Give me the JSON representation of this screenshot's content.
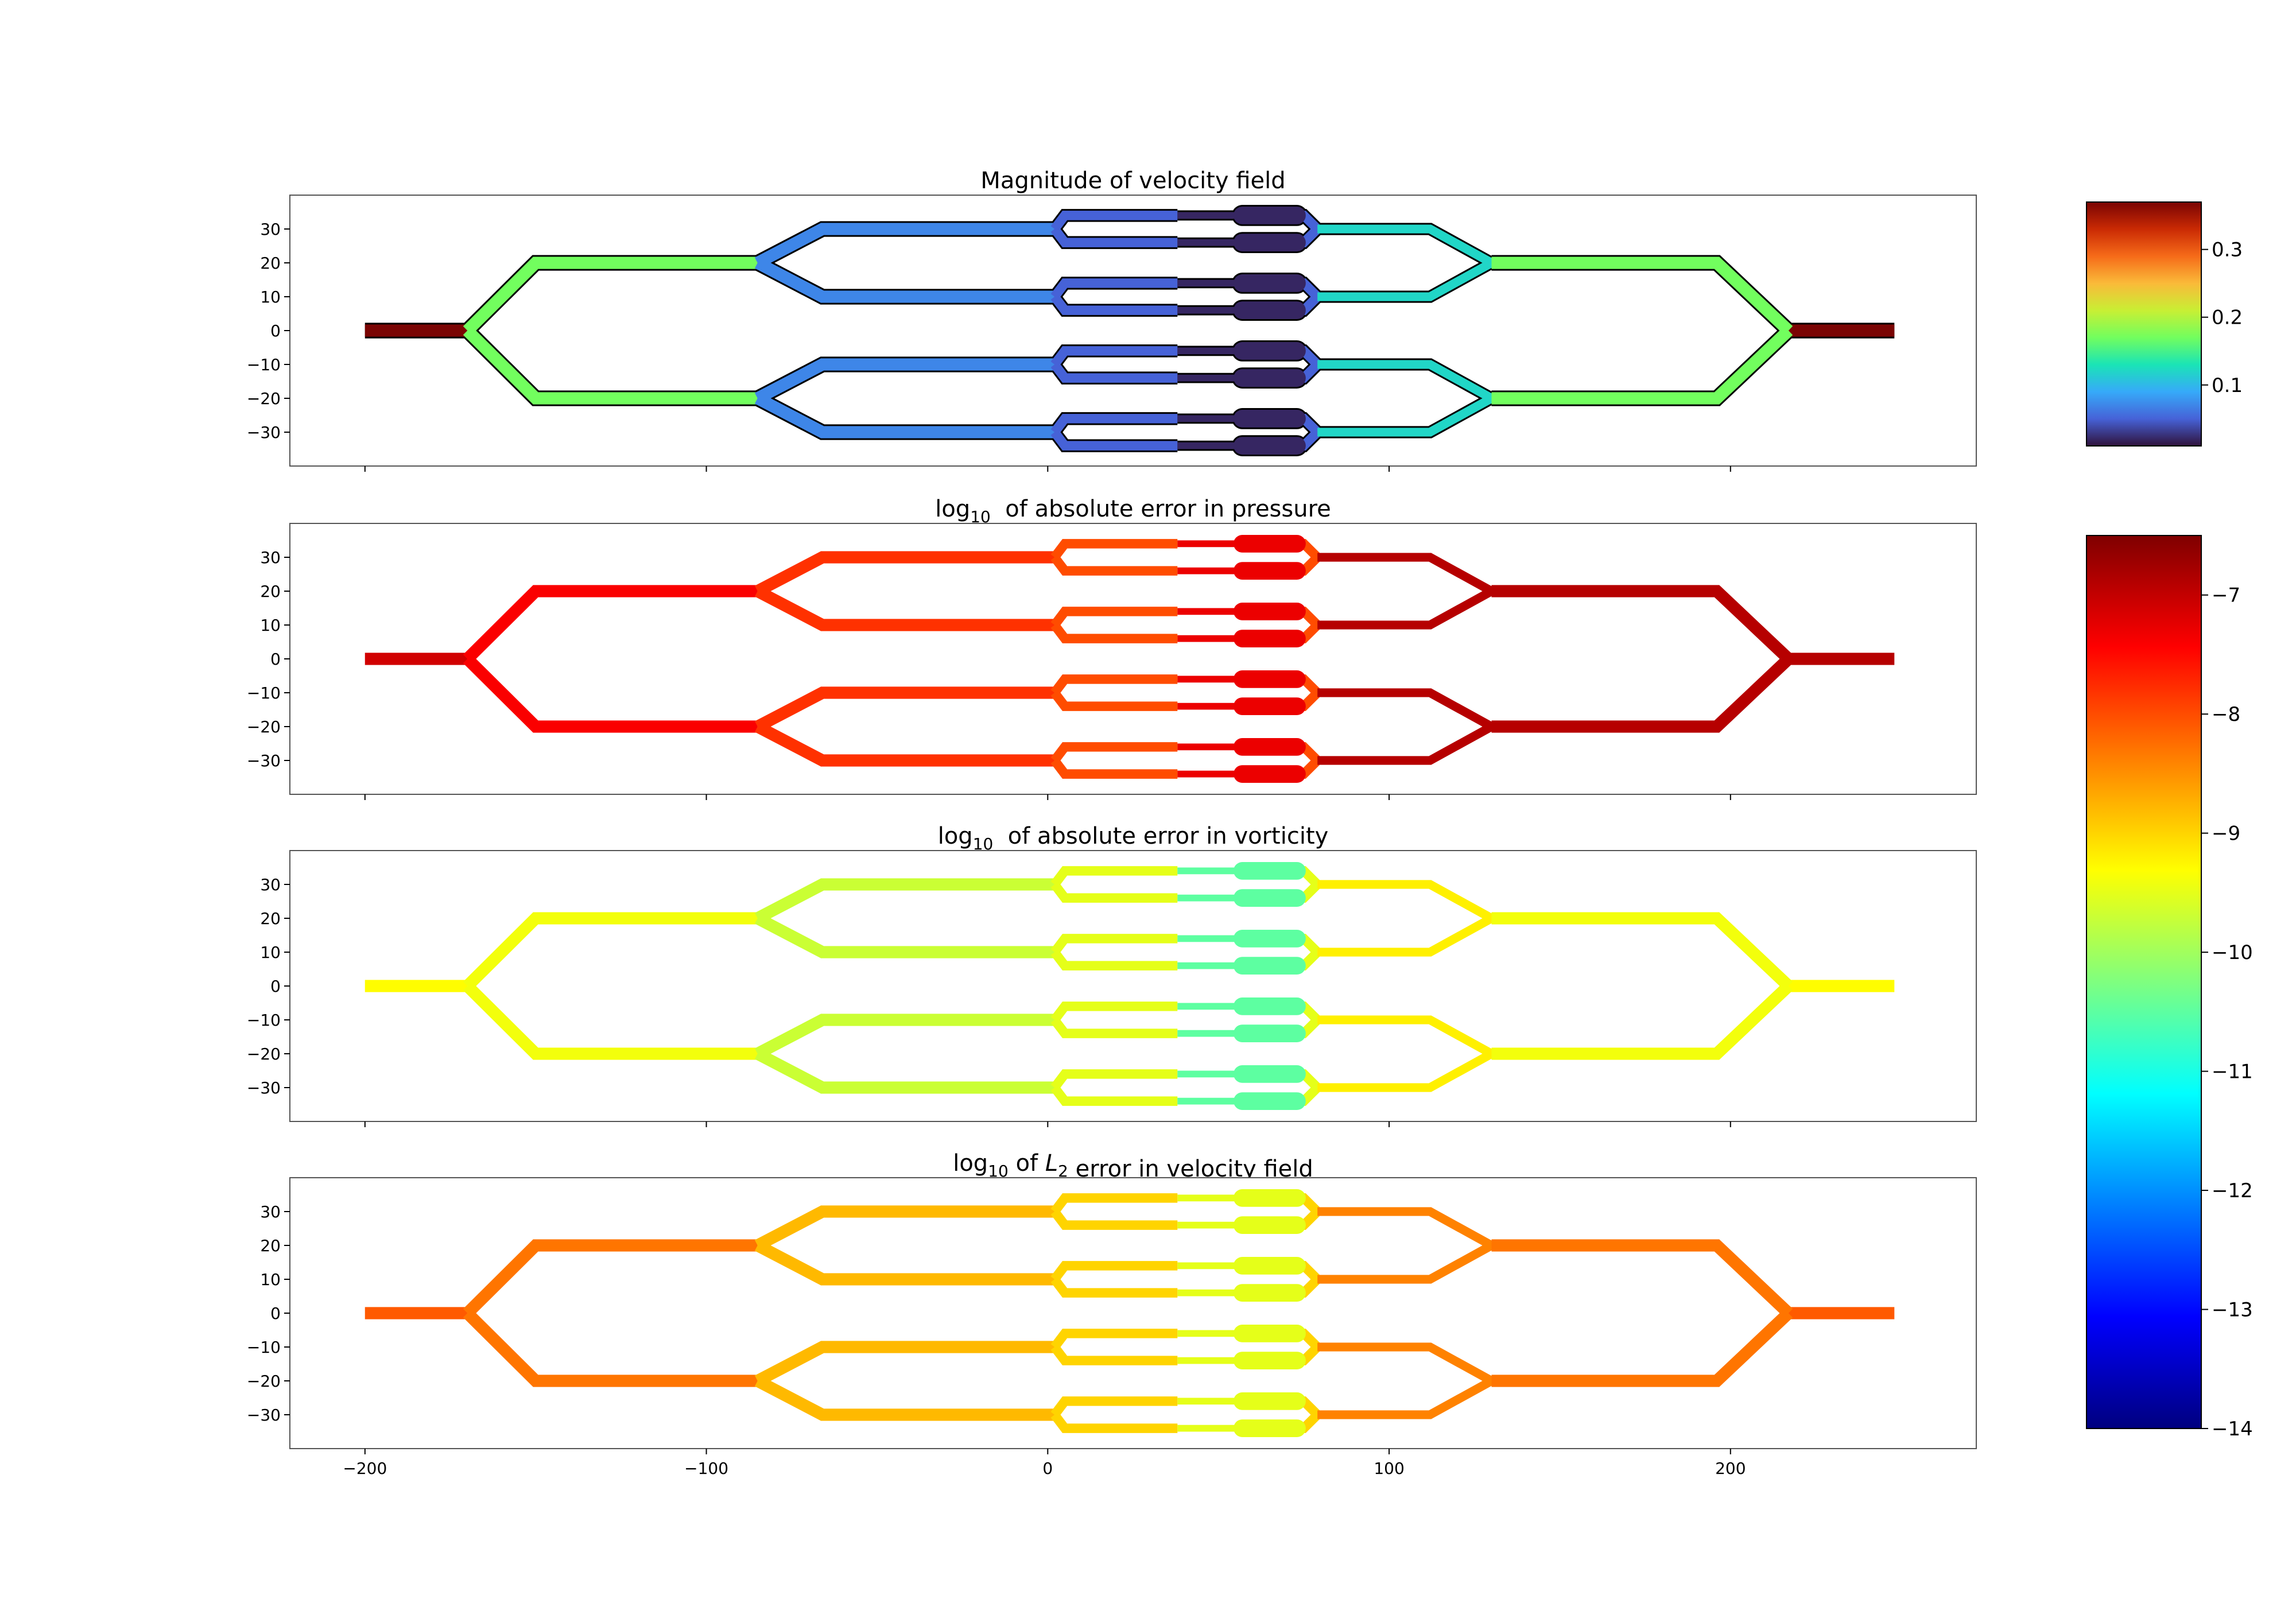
{
  "figure": {
    "colors": {
      "axes_frame": "#555555",
      "channel_outline": "#000000",
      "jet_stops": [
        "#00007f",
        "#0000ff",
        "#007fff",
        "#00ffff",
        "#7fff7f",
        "#ffff00",
        "#ff7f00",
        "#ff0000",
        "#7f0000"
      ],
      "turbo_stops": [
        "#30123b",
        "#4662d7",
        "#36aaf9",
        "#1ae4b6",
        "#72fe5e",
        "#c8ef34",
        "#faba39",
        "#f66b19",
        "#ca2a04",
        "#7a0403"
      ]
    },
    "colorbars": [
      {
        "scale": "turbo",
        "range": [
          0.01,
          0.37
        ],
        "ticks": [
          {
            "value": 0.1,
            "label": "0.1"
          },
          {
            "value": 0.2,
            "label": "0.2"
          },
          {
            "value": 0.3,
            "label": "0.3"
          }
        ]
      },
      {
        "scale": "jet",
        "range": [
          -14,
          -6.5
        ],
        "ticks": [
          {
            "value": -7,
            "label": "−7"
          },
          {
            "value": -8,
            "label": "−8"
          },
          {
            "value": -9,
            "label": "−9"
          },
          {
            "value": -10,
            "label": "−10"
          },
          {
            "value": -11,
            "label": "−11"
          },
          {
            "value": -12,
            "label": "−12"
          },
          {
            "value": -13,
            "label": "−13"
          },
          {
            "value": -14,
            "label": "−14"
          }
        ]
      }
    ]
  },
  "chart_data": [
    {
      "type": "heatmap",
      "title": {
        "main": "Magnitude of velocity field",
        "prefix": "",
        "sub": "",
        "italic": "",
        "italic_sub": "",
        "suffix": ""
      },
      "title_plain": "Magnitude of velocity field",
      "xlim": [
        -222,
        272
      ],
      "ylim": [
        -40,
        40
      ],
      "xticks": [],
      "yticks": [
        -30,
        -20,
        -10,
        0,
        10,
        20,
        30
      ],
      "outlined": true,
      "colorbar": 0,
      "values": {
        "inlet": 0.37,
        "stage1": 0.17,
        "stage2": 0.07,
        "stage3": 0.05,
        "stage4": 0.02,
        "stage5": 0.12,
        "stage6": 0.17,
        "outlet": 0.37
      }
    },
    {
      "type": "heatmap",
      "title": {
        "main": "",
        "prefix": "log",
        "sub": "10",
        "italic": "",
        "italic_sub": "",
        "suffix": " of absolute error in pressure"
      },
      "title_plain": "log10 of absolute error in pressure",
      "xlim": [
        -222,
        272
      ],
      "ylim": [
        -40,
        40
      ],
      "xticks": [],
      "yticks": [
        -30,
        -20,
        -10,
        0,
        10,
        20,
        30
      ],
      "outlined": false,
      "colorbar": 1,
      "values": {
        "inlet": -7.1,
        "stage1": -7.4,
        "stage2": -7.8,
        "stage3": -8.0,
        "stage4": -7.3,
        "stage5": -6.9,
        "stage6": -6.9,
        "outlet": -6.9
      }
    },
    {
      "type": "heatmap",
      "title": {
        "main": "",
        "prefix": "log",
        "sub": "10",
        "italic": "",
        "italic_sub": "",
        "suffix": " of absolute error in vorticity"
      },
      "title_plain": "log10 of absolute error in vorticity",
      "xlim": [
        -222,
        272
      ],
      "ylim": [
        -40,
        40
      ],
      "xticks": [],
      "yticks": [
        -30,
        -20,
        -10,
        0,
        10,
        20,
        30
      ],
      "outlined": false,
      "colorbar": 1,
      "values": {
        "inlet": -9.3,
        "stage1": -9.4,
        "stage2": -9.7,
        "stage3": -9.5,
        "stage4": -10.5,
        "stage5": -9.2,
        "stage6": -9.4,
        "outlet": -9.3
      }
    },
    {
      "type": "heatmap",
      "title": {
        "main": "",
        "prefix": "log",
        "sub": "10",
        "italic": "L",
        "italic_sub": "2",
        "suffix": " error in velocity field"
      },
      "title_plain": "log10 of L2 error in velocity field",
      "xlim": [
        -222,
        272
      ],
      "ylim": [
        -40,
        40
      ],
      "xticks": [
        -200,
        -100,
        0,
        100,
        200
      ],
      "yticks": [
        -30,
        -20,
        -10,
        0,
        10,
        20,
        30
      ],
      "outlined": false,
      "colorbar": 1,
      "values": {
        "inlet": -8.1,
        "stage1": -8.3,
        "stage2": -8.8,
        "stage3": -9.0,
        "stage4": -9.5,
        "stage5": -8.4,
        "stage6": -8.3,
        "outlet": -8.1
      }
    }
  ]
}
